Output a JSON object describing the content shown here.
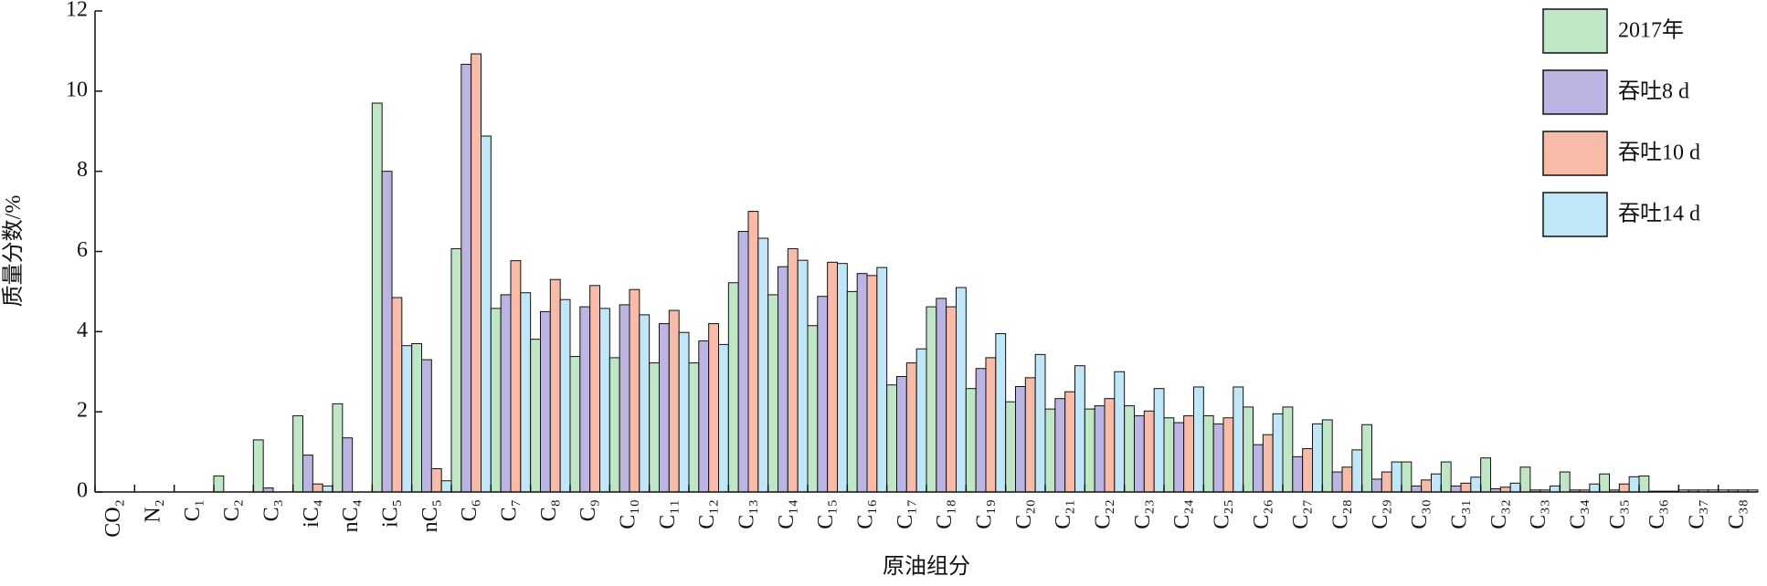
{
  "chart_data": {
    "type": "bar",
    "xlabel": "原油组分",
    "ylabel": "质量分数/%",
    "categories": [
      "CO₂",
      "N₂",
      "C₁",
      "C₂",
      "C₃",
      "iC₄",
      "nC₄",
      "iC₅",
      "nC₅",
      "C₆",
      "C₇",
      "C₈",
      "C₉",
      "C₁₀",
      "C₁₁",
      "C₁₂",
      "C₁₃",
      "C₁₄",
      "C₁₅",
      "C₁₆",
      "C₁₇",
      "C₁₈",
      "C₁₉",
      "C₂₀",
      "C₂₁",
      "C₂₂",
      "C₂₃",
      "C₂₄",
      "C₂₅",
      "C₂₆",
      "C₂₇",
      "C₂₈",
      "C₂₉",
      "C₃₀",
      "C₃₁",
      "C₃₂",
      "C₃₃",
      "C₃₄",
      "C₃₅",
      "C₃₆",
      "C₃₇",
      "C₃₈"
    ],
    "series": [
      {
        "name": "2017年",
        "color": "#c0e7c5",
        "values": [
          0,
          0,
          0,
          0.4,
          1.3,
          1.9,
          2.2,
          9.7,
          3.7,
          6.07,
          4.58,
          3.81,
          3.38,
          3.35,
          3.22,
          3.22,
          5.22,
          4.92,
          4.15,
          5.0,
          2.67,
          4.62,
          2.58,
          2.25,
          2.07,
          2.07,
          2.15,
          1.85,
          1.9,
          2.12,
          2.12,
          1.8,
          1.68,
          0.75,
          0.75,
          0.85,
          0.62,
          0.5,
          0.45,
          0.4,
          0.05,
          0.05
        ]
      },
      {
        "name": "吞吐8 d",
        "color": "#bcb4e2",
        "values": [
          0,
          0,
          0,
          0,
          0.1,
          0.92,
          1.35,
          8.0,
          3.3,
          10.67,
          4.92,
          4.5,
          4.62,
          4.67,
          4.2,
          3.77,
          6.5,
          5.62,
          4.88,
          5.45,
          2.88,
          4.83,
          3.08,
          2.63,
          2.33,
          2.15,
          1.9,
          1.73,
          1.7,
          1.18,
          0.88,
          0.5,
          0.32,
          0.15,
          0.15,
          0.08,
          0.05,
          0.05,
          0.05,
          0.02,
          0.05,
          0.05
        ]
      },
      {
        "name": "吞吐10 d",
        "color": "#f7bba7",
        "values": [
          0,
          0,
          0,
          0,
          0,
          0.2,
          0,
          4.85,
          0.58,
          10.93,
          5.77,
          5.3,
          5.15,
          5.05,
          4.53,
          4.2,
          7.0,
          6.07,
          5.73,
          5.4,
          3.22,
          4.62,
          3.35,
          2.85,
          2.5,
          2.33,
          2.02,
          1.9,
          1.85,
          1.43,
          1.08,
          0.62,
          0.5,
          0.3,
          0.22,
          0.12,
          0.05,
          0.05,
          0.2,
          0.02,
          0.05,
          0.05
        ]
      },
      {
        "name": "吞吐14 d",
        "color": "#bfe7f7",
        "values": [
          0,
          0,
          0,
          0,
          0,
          0.15,
          0,
          3.65,
          0.28,
          8.88,
          4.97,
          4.8,
          4.58,
          4.42,
          3.98,
          3.68,
          6.33,
          5.78,
          5.7,
          5.6,
          3.57,
          5.1,
          3.95,
          3.43,
          3.15,
          3.0,
          2.58,
          2.62,
          2.62,
          1.95,
          1.7,
          1.05,
          0.75,
          0.45,
          0.37,
          0.22,
          0.15,
          0.2,
          0.38,
          0.02,
          0.05,
          0.05
        ]
      }
    ],
    "ylim": [
      0,
      12
    ],
    "yticks": [
      0,
      2,
      4,
      6,
      8,
      10,
      12
    ],
    "legend": "upper right"
  }
}
